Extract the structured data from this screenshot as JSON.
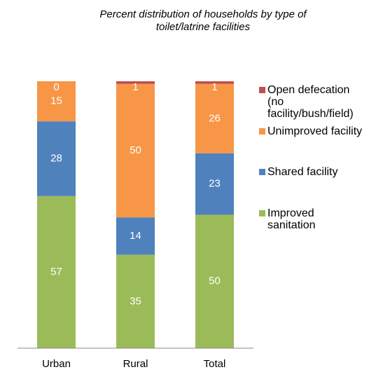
{
  "chart_data": {
    "type": "stacked-bar",
    "title": "Percent distribution of households by type of toilet/latrine facilities",
    "categories": [
      "Urban",
      "Rural",
      "Total"
    ],
    "series": [
      {
        "name": "Improved sanitation",
        "color": "#9bbb59",
        "values": [
          57,
          35,
          50
        ]
      },
      {
        "name": "Shared facility",
        "color": "#4f81bd",
        "values": [
          28,
          14,
          23
        ]
      },
      {
        "name": "Unimproved facility",
        "color": "#f79646",
        "values": [
          15,
          50,
          26
        ]
      },
      {
        "name": "Open defecation (no facility/bush/field)",
        "color": "#c0504d",
        "values": [
          0,
          1,
          1
        ]
      }
    ],
    "ylim": [
      0,
      100
    ]
  }
}
